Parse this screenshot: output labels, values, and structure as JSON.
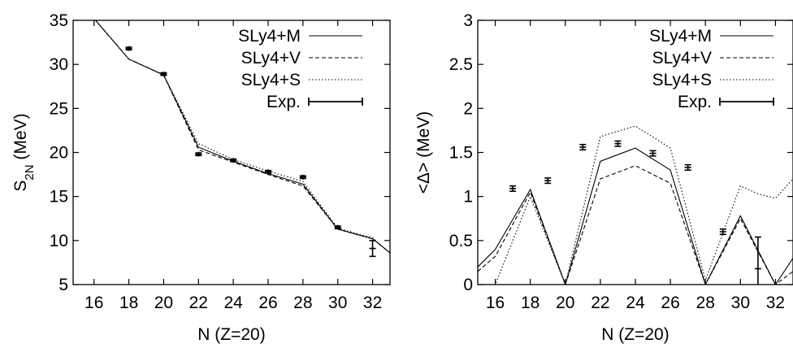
{
  "chart_data": [
    {
      "type": "line",
      "xlabel": "N (Z=20)",
      "ylabel": "S",
      "ylabel_sub": "2N",
      "ylabel_unit": " (MeV)",
      "xlim": [
        14.8,
        33
      ],
      "ylim": [
        5,
        35
      ],
      "xticks": [
        "16",
        "18",
        "20",
        "22",
        "24",
        "26",
        "28",
        "30",
        "32"
      ],
      "yticks": [
        "5",
        "10",
        "15",
        "20",
        "25",
        "30",
        "35"
      ],
      "legend_position": "top-right",
      "series": [
        {
          "name": "SLy4+M",
          "style": "solid",
          "x": [
            16,
            18,
            20,
            22,
            24,
            26,
            28,
            30,
            32,
            33
          ],
          "y": [
            35.2,
            30.6,
            28.8,
            20.6,
            19.0,
            17.6,
            16.4,
            11.3,
            10.2,
            8.6
          ]
        },
        {
          "name": "SLy4+V",
          "style": "dashed",
          "x": [
            16,
            18,
            20,
            22,
            24,
            26,
            28,
            30,
            32,
            33
          ],
          "y": [
            35.2,
            30.6,
            28.8,
            20.3,
            18.9,
            17.5,
            16.2,
            11.3,
            10.2,
            8.6
          ]
        },
        {
          "name": "SLy4+S",
          "style": "dotted",
          "x": [
            16,
            18,
            20,
            22,
            24,
            26,
            28,
            30,
            32,
            33
          ],
          "y": [
            35.2,
            30.6,
            28.8,
            21.0,
            19.2,
            17.9,
            16.7,
            11.4,
            10.3,
            8.6
          ]
        }
      ],
      "experimental": {
        "name": "Exp.",
        "x": [
          18,
          20,
          22,
          24,
          26,
          28,
          30,
          32
        ],
        "y": [
          31.8,
          28.9,
          19.8,
          19.1,
          17.8,
          17.2,
          11.5,
          9.1
        ],
        "err": [
          0.15,
          0.15,
          0.15,
          0.15,
          0.15,
          0.15,
          0.15,
          0.9
        ]
      }
    },
    {
      "type": "line",
      "xlabel": "N (Z=20)",
      "ylabel": "<Δ> (MeV)",
      "xlim": [
        15,
        33
      ],
      "ylim": [
        0,
        3
      ],
      "xticks": [
        "16",
        "18",
        "20",
        "22",
        "24",
        "26",
        "28",
        "30",
        "32"
      ],
      "yticks": [
        "0",
        "0.5",
        "1",
        "1.5",
        "2",
        "2.5",
        "3"
      ],
      "legend_position": "top-right",
      "series": [
        {
          "name": "SLy4+M",
          "style": "solid",
          "x": [
            15,
            16,
            18,
            20,
            22,
            24,
            26,
            28,
            30,
            32,
            33
          ],
          "y": [
            0.2,
            0.4,
            1.08,
            0.0,
            1.4,
            1.55,
            1.3,
            0.0,
            0.78,
            0.0,
            0.3
          ]
        },
        {
          "name": "SLy4+V",
          "style": "dashed",
          "x": [
            15,
            16,
            18,
            20,
            22,
            24,
            26,
            28,
            30,
            32,
            33
          ],
          "y": [
            0.15,
            0.32,
            1.05,
            0.0,
            1.2,
            1.35,
            1.15,
            0.0,
            0.75,
            0.0,
            0.15
          ]
        },
        {
          "name": "SLy4+S",
          "style": "dotted",
          "x": [
            15,
            16,
            18,
            20,
            22,
            24,
            26,
            28,
            30,
            31,
            32,
            33
          ],
          "y": [
            0.0,
            0.0,
            1.0,
            0.0,
            1.68,
            1.8,
            1.55,
            0.05,
            1.12,
            1.03,
            0.98,
            1.2
          ]
        }
      ],
      "experimental": {
        "name": "Exp.",
        "x": [
          17,
          19,
          21,
          23,
          25,
          27,
          29,
          31
        ],
        "y": [
          1.09,
          1.18,
          1.56,
          1.6,
          1.49,
          1.33,
          0.6,
          0.18
        ],
        "err": [
          0.03,
          0.03,
          0.03,
          0.03,
          0.03,
          0.03,
          0.03,
          0.36
        ]
      }
    }
  ]
}
